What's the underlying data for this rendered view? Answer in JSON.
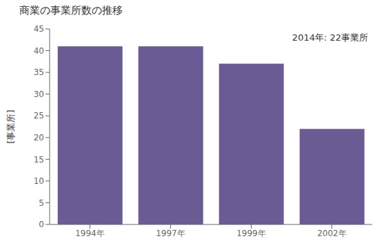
{
  "chart_data": {
    "type": "bar",
    "title": "商業の事業所数の推移",
    "ylabel": "[事業所]",
    "annotation": "2014年: 22事業所",
    "categories": [
      "1994年",
      "1997年",
      "1999年",
      "2002年"
    ],
    "values": [
      41,
      41,
      37,
      22
    ],
    "color": "#6B5B95",
    "ylim": [
      0,
      45
    ],
    "yticks": [
      0,
      5,
      10,
      15,
      20,
      25,
      30,
      35,
      40,
      45
    ],
    "grid": false
  }
}
